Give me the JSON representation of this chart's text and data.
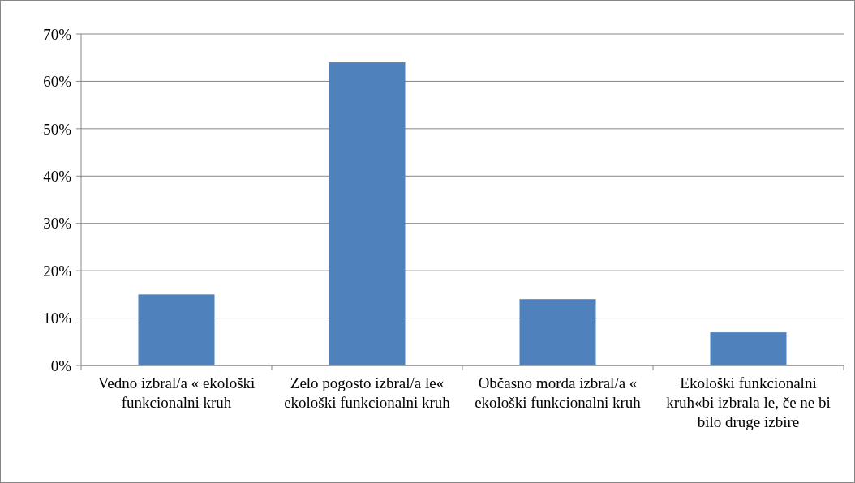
{
  "chart_data": {
    "type": "bar",
    "categories": [
      "Vedno izbral/a « ekološki funkcionalni kruh",
      "Zelo pogosto izbral/a le« ekološki funkcionalni kruh",
      "Občasno morda izbral/a « ekološki funkcionalni kruh",
      "Ekološki funkcionalni kruh«bi izbrala le, če ne bi bilo druge izbire"
    ],
    "values": [
      15,
      64,
      14,
      7
    ],
    "color": "#4f81bd",
    "ylim": [
      0,
      70
    ],
    "yticks": [
      {
        "value": 0,
        "label": "0%"
      },
      {
        "value": 10,
        "label": "10%"
      },
      {
        "value": 20,
        "label": "20%"
      },
      {
        "value": 30,
        "label": "30%"
      },
      {
        "value": 40,
        "label": "40%"
      },
      {
        "value": 50,
        "label": "50%"
      },
      {
        "value": 60,
        "label": "60%"
      },
      {
        "value": 70,
        "label": "70%"
      }
    ],
    "grid": "y"
  }
}
